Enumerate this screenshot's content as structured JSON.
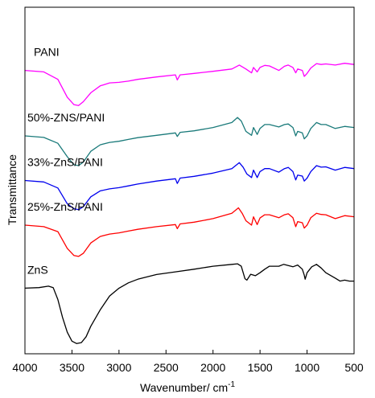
{
  "chart_data": {
    "type": "line",
    "title": "",
    "xlabel": "Wavenumber/ cm",
    "xlabel_superscript": "-1",
    "ylabel": "Transmittance",
    "xlim": [
      4000,
      500
    ],
    "x_reversed": true,
    "xticks": [
      4000,
      3500,
      3000,
      2500,
      2000,
      1500,
      1000,
      500
    ],
    "y_ticks_shown": false,
    "grid": false,
    "legend": "none (series labelled directly above each curve)",
    "series": [
      {
        "name": "PANI",
        "color": "#ff00ff",
        "points": [
          [
            4000,
            0.92
          ],
          [
            3800,
            0.915
          ],
          [
            3650,
            0.89
          ],
          [
            3550,
            0.83
          ],
          [
            3480,
            0.805
          ],
          [
            3430,
            0.802
          ],
          [
            3380,
            0.815
          ],
          [
            3300,
            0.845
          ],
          [
            3200,
            0.868
          ],
          [
            3100,
            0.878
          ],
          [
            3000,
            0.88
          ],
          [
            2900,
            0.884
          ],
          [
            2800,
            0.89
          ],
          [
            2600,
            0.898
          ],
          [
            2400,
            0.905
          ],
          [
            2380,
            0.888
          ],
          [
            2350,
            0.905
          ],
          [
            2200,
            0.91
          ],
          [
            2000,
            0.917
          ],
          [
            1800,
            0.925
          ],
          [
            1720,
            0.938
          ],
          [
            1650,
            0.925
          ],
          [
            1590,
            0.912
          ],
          [
            1570,
            0.93
          ],
          [
            1530,
            0.915
          ],
          [
            1500,
            0.93
          ],
          [
            1450,
            0.937
          ],
          [
            1400,
            0.935
          ],
          [
            1300,
            0.92
          ],
          [
            1240,
            0.934
          ],
          [
            1200,
            0.938
          ],
          [
            1150,
            0.93
          ],
          [
            1120,
            0.912
          ],
          [
            1100,
            0.925
          ],
          [
            1050,
            0.92
          ],
          [
            1030,
            0.9
          ],
          [
            1000,
            0.91
          ],
          [
            960,
            0.928
          ],
          [
            900,
            0.943
          ],
          [
            850,
            0.94
          ],
          [
            800,
            0.942
          ],
          [
            700,
            0.938
          ],
          [
            600,
            0.944
          ],
          [
            500,
            0.94
          ]
        ]
      },
      {
        "name": "50%-ZNS/PANI",
        "color": "#1a7a7a",
        "points": [
          [
            4000,
            0.7
          ],
          [
            3800,
            0.695
          ],
          [
            3650,
            0.675
          ],
          [
            3550,
            0.63
          ],
          [
            3480,
            0.603
          ],
          [
            3430,
            0.6
          ],
          [
            3380,
            0.612
          ],
          [
            3300,
            0.648
          ],
          [
            3200,
            0.67
          ],
          [
            3100,
            0.678
          ],
          [
            3000,
            0.682
          ],
          [
            2900,
            0.688
          ],
          [
            2800,
            0.694
          ],
          [
            2600,
            0.702
          ],
          [
            2400,
            0.71
          ],
          [
            2380,
            0.698
          ],
          [
            2350,
            0.712
          ],
          [
            2200,
            0.717
          ],
          [
            2000,
            0.728
          ],
          [
            1800,
            0.745
          ],
          [
            1740,
            0.762
          ],
          [
            1700,
            0.75
          ],
          [
            1650,
            0.715
          ],
          [
            1590,
            0.702
          ],
          [
            1570,
            0.728
          ],
          [
            1530,
            0.705
          ],
          [
            1500,
            0.725
          ],
          [
            1450,
            0.738
          ],
          [
            1400,
            0.738
          ],
          [
            1300,
            0.73
          ],
          [
            1240,
            0.738
          ],
          [
            1200,
            0.74
          ],
          [
            1150,
            0.728
          ],
          [
            1120,
            0.7
          ],
          [
            1100,
            0.715
          ],
          [
            1050,
            0.71
          ],
          [
            1030,
            0.69
          ],
          [
            1000,
            0.7
          ],
          [
            960,
            0.725
          ],
          [
            900,
            0.745
          ],
          [
            850,
            0.738
          ],
          [
            800,
            0.738
          ],
          [
            700,
            0.725
          ],
          [
            600,
            0.732
          ],
          [
            500,
            0.728
          ]
        ]
      },
      {
        "name": "33%-ZnS/PANI",
        "color": "#0000ee",
        "points": [
          [
            4000,
            0.55
          ],
          [
            3800,
            0.545
          ],
          [
            3650,
            0.525
          ],
          [
            3550,
            0.472
          ],
          [
            3480,
            0.455
          ],
          [
            3430,
            0.452
          ],
          [
            3380,
            0.462
          ],
          [
            3300,
            0.495
          ],
          [
            3200,
            0.515
          ],
          [
            3100,
            0.522
          ],
          [
            3000,
            0.526
          ],
          [
            2900,
            0.532
          ],
          [
            2800,
            0.538
          ],
          [
            2600,
            0.548
          ],
          [
            2400,
            0.556
          ],
          [
            2380,
            0.54
          ],
          [
            2350,
            0.558
          ],
          [
            2200,
            0.564
          ],
          [
            2000,
            0.575
          ],
          [
            1800,
            0.59
          ],
          [
            1720,
            0.61
          ],
          [
            1680,
            0.595
          ],
          [
            1640,
            0.572
          ],
          [
            1590,
            0.56
          ],
          [
            1570,
            0.585
          ],
          [
            1530,
            0.56
          ],
          [
            1500,
            0.58
          ],
          [
            1450,
            0.59
          ],
          [
            1400,
            0.59
          ],
          [
            1300,
            0.578
          ],
          [
            1240,
            0.59
          ],
          [
            1200,
            0.594
          ],
          [
            1150,
            0.58
          ],
          [
            1120,
            0.552
          ],
          [
            1100,
            0.568
          ],
          [
            1050,
            0.565
          ],
          [
            1030,
            0.548
          ],
          [
            1000,
            0.558
          ],
          [
            960,
            0.58
          ],
          [
            900,
            0.6
          ],
          [
            850,
            0.595
          ],
          [
            800,
            0.596
          ],
          [
            700,
            0.585
          ],
          [
            600,
            0.594
          ],
          [
            500,
            0.59
          ]
        ]
      },
      {
        "name": "25%-ZnS/PANI",
        "color": "#ff0000",
        "points": [
          [
            4000,
            0.4
          ],
          [
            3800,
            0.395
          ],
          [
            3650,
            0.378
          ],
          [
            3550,
            0.322
          ],
          [
            3480,
            0.298
          ],
          [
            3430,
            0.295
          ],
          [
            3380,
            0.305
          ],
          [
            3300,
            0.34
          ],
          [
            3200,
            0.362
          ],
          [
            3100,
            0.37
          ],
          [
            3000,
            0.374
          ],
          [
            2900,
            0.38
          ],
          [
            2800,
            0.386
          ],
          [
            2600,
            0.395
          ],
          [
            2400,
            0.402
          ],
          [
            2380,
            0.388
          ],
          [
            2350,
            0.404
          ],
          [
            2200,
            0.41
          ],
          [
            2000,
            0.422
          ],
          [
            1800,
            0.44
          ],
          [
            1730,
            0.458
          ],
          [
            1690,
            0.44
          ],
          [
            1650,
            0.415
          ],
          [
            1590,
            0.4
          ],
          [
            1570,
            0.428
          ],
          [
            1530,
            0.402
          ],
          [
            1500,
            0.424
          ],
          [
            1450,
            0.435
          ],
          [
            1400,
            0.435
          ],
          [
            1300,
            0.425
          ],
          [
            1240,
            0.435
          ],
          [
            1200,
            0.438
          ],
          [
            1150,
            0.425
          ],
          [
            1120,
            0.395
          ],
          [
            1100,
            0.412
          ],
          [
            1050,
            0.408
          ],
          [
            1030,
            0.39
          ],
          [
            1000,
            0.4
          ],
          [
            960,
            0.425
          ],
          [
            900,
            0.44
          ],
          [
            850,
            0.436
          ],
          [
            800,
            0.435
          ],
          [
            700,
            0.422
          ],
          [
            600,
            0.432
          ],
          [
            500,
            0.428
          ]
        ]
      },
      {
        "name": "ZnS",
        "color": "#000000",
        "points": [
          [
            4000,
            0.188
          ],
          [
            3850,
            0.19
          ],
          [
            3750,
            0.195
          ],
          [
            3700,
            0.19
          ],
          [
            3650,
            0.15
          ],
          [
            3600,
            0.09
          ],
          [
            3550,
            0.04
          ],
          [
            3500,
            0.01
          ],
          [
            3450,
            0.002
          ],
          [
            3400,
            0.005
          ],
          [
            3350,
            0.025
          ],
          [
            3300,
            0.06
          ],
          [
            3200,
            0.115
          ],
          [
            3100,
            0.162
          ],
          [
            3000,
            0.188
          ],
          [
            2900,
            0.206
          ],
          [
            2800,
            0.218
          ],
          [
            2600,
            0.234
          ],
          [
            2400,
            0.243
          ],
          [
            2200,
            0.252
          ],
          [
            2000,
            0.262
          ],
          [
            1800,
            0.268
          ],
          [
            1740,
            0.27
          ],
          [
            1700,
            0.262
          ],
          [
            1660,
            0.22
          ],
          [
            1640,
            0.215
          ],
          [
            1600,
            0.235
          ],
          [
            1550,
            0.23
          ],
          [
            1500,
            0.24
          ],
          [
            1450,
            0.252
          ],
          [
            1400,
            0.262
          ],
          [
            1350,
            0.262
          ],
          [
            1300,
            0.262
          ],
          [
            1250,
            0.268
          ],
          [
            1200,
            0.264
          ],
          [
            1150,
            0.26
          ],
          [
            1100,
            0.266
          ],
          [
            1050,
            0.252
          ],
          [
            1030,
            0.232
          ],
          [
            1020,
            0.218
          ],
          [
            1000,
            0.24
          ],
          [
            950,
            0.26
          ],
          [
            900,
            0.268
          ],
          [
            850,
            0.256
          ],
          [
            800,
            0.24
          ],
          [
            700,
            0.222
          ],
          [
            650,
            0.212
          ],
          [
            600,
            0.215
          ],
          [
            550,
            0.212
          ],
          [
            500,
            0.212
          ]
        ]
      }
    ]
  }
}
